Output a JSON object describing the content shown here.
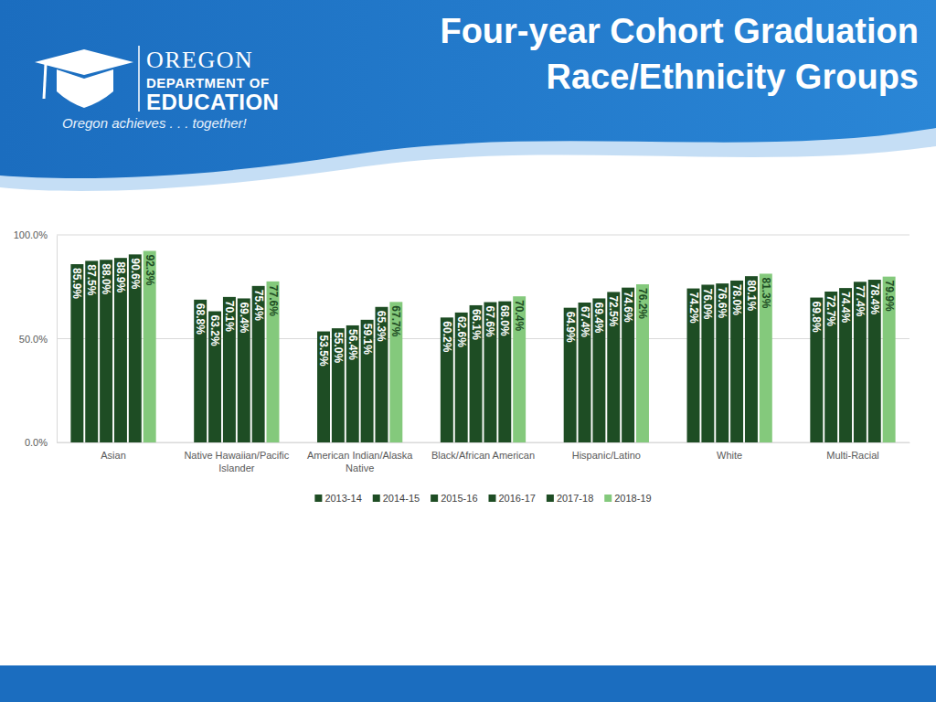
{
  "header": {
    "title": [
      "Four-year Cohort Graduation",
      "Race/Ethnicity Groups"
    ],
    "logo": [
      "OREGON",
      "DEPARTMENT OF",
      "EDUCATION"
    ],
    "tagline": "Oregon achieves . . . together!"
  },
  "chart_data": {
    "type": "bar",
    "categories": [
      "Asian",
      "Native Hawaiian/Pacific Islander",
      "American Indian/Alaska Native",
      "Black/African American",
      "Hispanic/Latino",
      "White",
      "Multi-Racial"
    ],
    "series": [
      {
        "name": "2013-14",
        "color": "#1e4d24",
        "values": [
          85.9,
          68.8,
          53.5,
          60.2,
          64.9,
          74.2,
          69.8
        ],
        "value_labels": [
          "85.9%",
          "68.8%",
          "53.5%",
          "60.2%",
          "64.9%",
          "74.2%",
          "69.8%"
        ]
      },
      {
        "name": "2014-15",
        "color": "#1e4d24",
        "values": [
          87.5,
          63.2,
          55.0,
          62.6,
          67.4,
          76.0,
          72.7
        ],
        "value_labels": [
          "87.5%",
          "63.2%",
          "55.0%",
          "62.6%",
          "67.4%",
          "76.0%",
          "72.7%"
        ]
      },
      {
        "name": "2015-16",
        "color": "#1e4d24",
        "values": [
          88.0,
          70.1,
          56.4,
          66.1,
          69.4,
          76.6,
          74.4
        ],
        "value_labels": [
          "88.0%",
          "70.1%",
          "56.4%",
          "66.1%",
          "69.4%",
          "76.6%",
          "74.4%"
        ]
      },
      {
        "name": "2016-17",
        "color": "#1e4d24",
        "values": [
          88.9,
          69.4,
          59.1,
          67.6,
          72.5,
          78.0,
          77.4
        ],
        "value_labels": [
          "88.9%",
          "69.4%",
          "59.1%",
          "67.6%",
          "72.5%",
          "78.0%",
          "77.4%"
        ]
      },
      {
        "name": "2017-18",
        "color": "#1e4d24",
        "values": [
          90.6,
          75.4,
          65.3,
          68.0,
          74.6,
          80.1,
          78.4
        ],
        "value_labels": [
          "90.6%",
          "75.4%",
          "65.3%",
          "68.0%",
          "74.6%",
          "80.1%",
          "78.4%"
        ]
      },
      {
        "name": "2018-19",
        "color": "#84c97c",
        "values": [
          92.3,
          77.6,
          67.7,
          70.4,
          76.2,
          81.3,
          79.9
        ],
        "value_labels": [
          "92.3%",
          "77.6%",
          "67.7%",
          "70.4%",
          "76.2%",
          "81.3%",
          "79.9%"
        ]
      }
    ],
    "ylim": [
      0,
      100
    ],
    "yticks": [
      {
        "value": 0,
        "label": "0.0%"
      },
      {
        "value": 50,
        "label": "50.0%"
      },
      {
        "value": 100,
        "label": "100.0%"
      }
    ],
    "grid": true,
    "legend": "bottom",
    "data_labels": true
  }
}
